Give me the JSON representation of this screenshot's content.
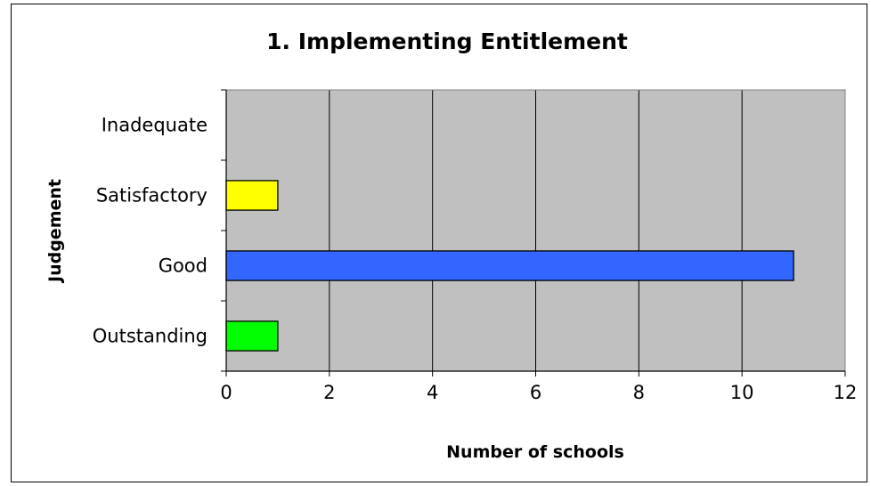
{
  "chart_data": {
    "type": "bar",
    "orientation": "horizontal",
    "title": "1. Implementing Entitlement",
    "xlabel": "Number of schools",
    "ylabel": "Judgement",
    "categories": [
      "Outstanding",
      "Good",
      "Satisfactory",
      "Inadequate"
    ],
    "values": [
      1,
      11,
      1,
      0
    ],
    "bar_colors": [
      "#00ff00",
      "#3366ff",
      "#ffff00",
      "#ff0000"
    ],
    "xlim": [
      0,
      12
    ],
    "xticks": [
      "0",
      "2",
      "4",
      "6",
      "8",
      "10",
      "12"
    ],
    "grid": "vertical",
    "legend": "none",
    "plot_background": "#c0c0c0"
  }
}
